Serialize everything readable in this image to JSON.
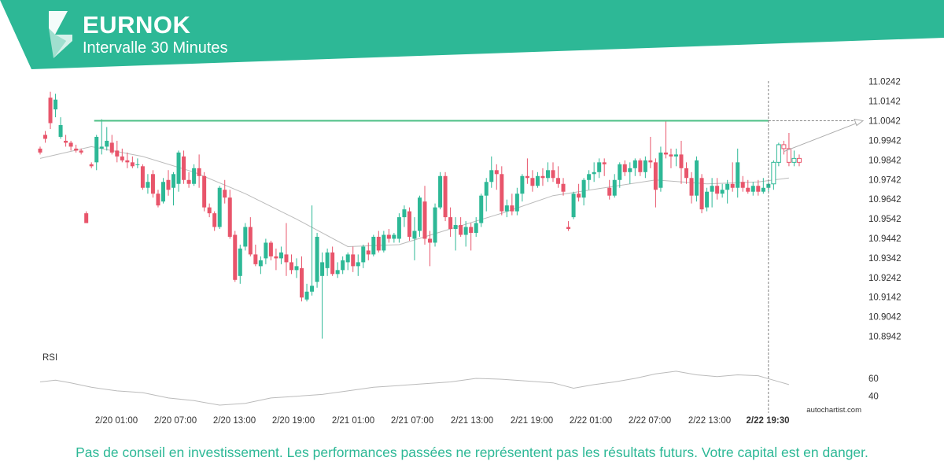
{
  "header": {
    "symbol": "EURNOK",
    "interval": "Intervalle 30 Minutes"
  },
  "colors": {
    "banner": "#2db896",
    "bull": "#2db896",
    "bear": "#e8556b",
    "resistance": "#4cbf86",
    "moving_average": "#bbbbbb",
    "rsi": "#bbbbbb"
  },
  "icons": {
    "logo": "autochartist-logo-icon"
  },
  "chart_data": {
    "type": "candlestick",
    "price_axis_labels": [
      "11.0242",
      "11.0142",
      "11.0042",
      "10.9942",
      "10.9842",
      "10.9742",
      "10.9642",
      "10.9542",
      "10.9442",
      "10.9342",
      "10.9242",
      "10.9142",
      "10.9042",
      "10.8942"
    ],
    "ylim": [
      10.8892,
      11.0277
    ],
    "time_axis_labels": [
      "2/20 01:00",
      "2/20 07:00",
      "2/20 13:00",
      "2/20 19:00",
      "2/21 01:00",
      "2/21 07:00",
      "2/21 13:00",
      "2/21 19:00",
      "2/22 01:00",
      "2/22 07:00",
      "2/22 13:00",
      "2/22 19:30"
    ],
    "bar_interval_minutes": 30,
    "resistance_level": 11.0042,
    "marker_time": "2/22 19:30",
    "projection": {
      "from": 10.9885,
      "to": 11.0042
    },
    "candles": [
      [
        10.99,
        10.991,
        10.987,
        10.988
      ],
      [
        10.997,
        10.999,
        10.993,
        10.995
      ],
      [
        11.016,
        11.019,
        11.0,
        11.003
      ],
      [
        11.01,
        11.018,
        11.006,
        11.015
      ],
      [
        10.996,
        11.006,
        10.995,
        11.002
      ],
      [
        10.994,
        10.997,
        10.991,
        10.993
      ],
      [
        10.993,
        10.994,
        10.989,
        10.991
      ],
      [
        10.99,
        10.992,
        10.988,
        10.989
      ],
      [
        10.989,
        10.99,
        10.987,
        10.988
      ],
      [
        10.957,
        10.958,
        10.952,
        10.952
      ],
      [
        10.982,
        10.983,
        10.98,
        10.981
      ],
      [
        10.983,
        10.997,
        10.979,
        10.996
      ],
      [
        10.99,
        11.005,
        10.987,
        10.991
      ],
      [
        10.991,
        11.001,
        10.989,
        10.994
      ],
      [
        10.993,
        10.997,
        10.987,
        10.988
      ],
      [
        10.989,
        10.994,
        10.983,
        10.986
      ],
      [
        10.986,
        10.99,
        10.983,
        10.984
      ],
      [
        10.984,
        10.988,
        10.98,
        10.983
      ],
      [
        10.983,
        10.986,
        10.98,
        10.981
      ],
      [
        10.982,
        10.985,
        10.98,
        10.982
      ],
      [
        10.981,
        10.982,
        10.969,
        10.97
      ],
      [
        10.97,
        10.977,
        10.967,
        10.973
      ],
      [
        10.977,
        10.979,
        10.965,
        10.967
      ],
      [
        10.967,
        10.969,
        10.96,
        10.961
      ],
      [
        10.963,
        10.975,
        10.962,
        10.973
      ],
      [
        10.974,
        10.979,
        10.966,
        10.969
      ],
      [
        10.97,
        10.978,
        10.961,
        10.977
      ],
      [
        10.972,
        10.989,
        10.968,
        10.988
      ],
      [
        10.986,
        10.989,
        10.972,
        10.974
      ],
      [
        10.974,
        10.978,
        10.97,
        10.972
      ],
      [
        10.972,
        10.982,
        10.971,
        10.98
      ],
      [
        10.98,
        10.987,
        10.97,
        10.976
      ],
      [
        10.976,
        10.978,
        10.958,
        10.96
      ],
      [
        10.96,
        10.962,
        10.955,
        10.957
      ],
      [
        10.957,
        10.958,
        10.948,
        10.95
      ],
      [
        10.95,
        10.971,
        10.949,
        10.97
      ],
      [
        10.969,
        10.974,
        10.962,
        10.965
      ],
      [
        10.965,
        10.969,
        10.944,
        10.945
      ],
      [
        10.946,
        10.948,
        10.922,
        10.923
      ],
      [
        10.925,
        10.941,
        10.921,
        10.939
      ],
      [
        10.94,
        10.952,
        10.938,
        10.95
      ],
      [
        10.95,
        10.955,
        10.935,
        10.936
      ],
      [
        10.936,
        10.941,
        10.93,
        10.931
      ],
      [
        10.93,
        10.935,
        10.926,
        10.933
      ],
      [
        10.934,
        10.944,
        10.931,
        10.942
      ],
      [
        10.942,
        10.943,
        10.933,
        10.935
      ],
      [
        10.935,
        10.939,
        10.928,
        10.934
      ],
      [
        10.934,
        10.94,
        10.931,
        10.937
      ],
      [
        10.936,
        10.952,
        10.925,
        10.932
      ],
      [
        10.932,
        10.936,
        10.926,
        10.928
      ],
      [
        10.928,
        10.934,
        10.924,
        10.93
      ],
      [
        10.929,
        10.935,
        10.912,
        10.914
      ],
      [
        10.913,
        10.921,
        10.912,
        10.917
      ],
      [
        10.917,
        10.961,
        10.915,
        10.92
      ],
      [
        10.922,
        10.947,
        10.919,
        10.945
      ],
      [
        10.925,
        10.937,
        10.893,
        10.932
      ],
      [
        10.929,
        10.939,
        10.925,
        10.937
      ],
      [
        10.937,
        10.94,
        10.925,
        10.926
      ],
      [
        10.926,
        10.932,
        10.924,
        10.928
      ],
      [
        10.928,
        10.935,
        10.926,
        10.933
      ],
      [
        10.932,
        10.937,
        10.928,
        10.936
      ],
      [
        10.936,
        10.94,
        10.927,
        10.93
      ],
      [
        10.93,
        10.936,
        10.925,
        10.932
      ],
      [
        10.932,
        10.941,
        10.929,
        10.94
      ],
      [
        10.938,
        10.942,
        10.933,
        10.936
      ],
      [
        10.936,
        10.946,
        10.935,
        10.945
      ],
      [
        10.945,
        10.948,
        10.937,
        10.938
      ],
      [
        10.938,
        10.948,
        10.937,
        10.946
      ],
      [
        10.946,
        10.949,
        10.942,
        10.944
      ],
      [
        10.944,
        10.947,
        10.942,
        10.946
      ],
      [
        10.944,
        10.957,
        10.942,
        10.955
      ],
      [
        10.955,
        10.961,
        10.95,
        10.959
      ],
      [
        10.958,
        10.96,
        10.943,
        10.945
      ],
      [
        10.944,
        10.955,
        10.933,
        10.948
      ],
      [
        10.948,
        10.966,
        10.945,
        10.965
      ],
      [
        10.963,
        10.971,
        10.941,
        10.944
      ],
      [
        10.944,
        10.948,
        10.93,
        10.942
      ],
      [
        10.942,
        10.962,
        10.94,
        10.96
      ],
      [
        10.96,
        10.978,
        10.959,
        10.976
      ],
      [
        10.976,
        10.978,
        10.953,
        10.955
      ],
      [
        10.955,
        10.96,
        10.945,
        10.949
      ],
      [
        10.949,
        10.955,
        10.938,
        10.951
      ],
      [
        10.951,
        10.955,
        10.945,
        10.946
      ],
      [
        10.946,
        10.953,
        10.94,
        10.95
      ],
      [
        10.95,
        10.952,
        10.938,
        10.947
      ],
      [
        10.947,
        10.955,
        10.945,
        10.952
      ],
      [
        10.952,
        10.967,
        10.95,
        10.966
      ],
      [
        10.966,
        10.975,
        10.958,
        10.973
      ],
      [
        10.973,
        10.986,
        10.97,
        10.979
      ],
      [
        10.979,
        10.982,
        10.969,
        10.977
      ],
      [
        10.977,
        10.981,
        10.956,
        10.958
      ],
      [
        10.958,
        10.964,
        10.955,
        10.961
      ],
      [
        10.961,
        10.967,
        10.956,
        10.958
      ],
      [
        10.958,
        10.97,
        10.956,
        10.967
      ],
      [
        10.967,
        10.977,
        10.963,
        10.976
      ],
      [
        10.976,
        10.985,
        10.972,
        10.975
      ],
      [
        10.975,
        10.979,
        10.968,
        10.971
      ],
      [
        10.971,
        10.978,
        10.97,
        10.976
      ],
      [
        10.976,
        10.98,
        10.971,
        10.975
      ],
      [
        10.975,
        10.983,
        10.973,
        10.979
      ],
      [
        10.979,
        10.983,
        10.973,
        10.975
      ],
      [
        10.975,
        10.981,
        10.97,
        10.972
      ],
      [
        10.972,
        10.975,
        10.966,
        10.968
      ],
      [
        10.95,
        10.953,
        10.948,
        10.949
      ],
      [
        10.955,
        10.968,
        10.954,
        10.967
      ],
      [
        10.967,
        10.972,
        10.963,
        10.965
      ],
      [
        10.965,
        10.975,
        10.961,
        10.974
      ],
      [
        10.974,
        10.979,
        10.969,
        10.977
      ],
      [
        10.977,
        10.983,
        10.973,
        10.978
      ],
      [
        10.978,
        10.985,
        10.975,
        10.983
      ],
      [
        10.983,
        10.985,
        10.976,
        10.982
      ],
      [
        10.97,
        10.974,
        10.964,
        10.966
      ],
      [
        10.966,
        10.977,
        10.965,
        10.974
      ],
      [
        10.974,
        10.983,
        10.97,
        10.982
      ],
      [
        10.982,
        10.984,
        10.976,
        10.978
      ],
      [
        10.978,
        10.983,
        10.972,
        10.98
      ],
      [
        10.98,
        10.985,
        10.976,
        10.984
      ],
      [
        10.984,
        10.985,
        10.976,
        10.978
      ],
      [
        10.978,
        10.986,
        10.975,
        10.984
      ],
      [
        10.984,
        10.996,
        10.98,
        10.983
      ],
      [
        10.983,
        10.985,
        10.96,
        10.969
      ],
      [
        10.97,
        10.991,
        10.968,
        10.988
      ],
      [
        10.988,
        11.004,
        10.985,
        10.987
      ],
      [
        10.987,
        10.99,
        10.98,
        10.986
      ],
      [
        10.986,
        10.99,
        10.981,
        10.987
      ],
      [
        10.987,
        10.994,
        10.972,
        10.98
      ],
      [
        10.98,
        10.983,
        10.972,
        10.975
      ],
      [
        10.975,
        10.978,
        10.962,
        10.966
      ],
      [
        10.966,
        10.986,
        10.963,
        10.984
      ],
      [
        10.975,
        10.977,
        10.957,
        10.959
      ],
      [
        10.96,
        10.97,
        10.958,
        10.968
      ],
      [
        10.968,
        10.975,
        10.96,
        10.971
      ],
      [
        10.971,
        10.975,
        10.964,
        10.967
      ],
      [
        10.967,
        10.972,
        10.965,
        10.969
      ],
      [
        10.969,
        10.974,
        10.962,
        10.972
      ],
      [
        10.972,
        10.983,
        10.968,
        10.97
      ],
      [
        10.97,
        10.99,
        10.965,
        10.983
      ],
      [
        10.973,
        10.976,
        10.968,
        10.97
      ],
      [
        10.97,
        10.974,
        10.967,
        10.968
      ],
      [
        10.968,
        10.973,
        10.966,
        10.971
      ],
      [
        10.971,
        10.974,
        10.966,
        10.968
      ],
      [
        10.968,
        10.975,
        10.967,
        10.97
      ],
      [
        10.97,
        10.973,
        10.968,
        10.972
      ],
      [
        10.972,
        10.984,
        10.969,
        10.983
      ],
      [
        10.983,
        10.993,
        10.981,
        10.992
      ],
      [
        10.992,
        10.994,
        10.987,
        10.99
      ],
      [
        10.99,
        10.998,
        10.981,
        10.983
      ],
      [
        10.983,
        10.989,
        10.981,
        10.985
      ],
      [
        10.985,
        10.987,
        10.981,
        10.983
      ]
    ],
    "moving_average": [
      [
        0,
        10.985
      ],
      [
        10,
        10.991
      ],
      [
        20,
        10.986
      ],
      [
        30,
        10.978
      ],
      [
        40,
        10.967
      ],
      [
        50,
        10.954
      ],
      [
        60,
        10.94
      ],
      [
        70,
        10.941
      ],
      [
        80,
        10.949
      ],
      [
        90,
        10.957
      ],
      [
        100,
        10.966
      ],
      [
        110,
        10.97
      ],
      [
        120,
        10.974
      ],
      [
        130,
        10.972
      ],
      [
        140,
        10.973
      ],
      [
        146,
        10.975
      ]
    ],
    "rsi": {
      "label": "RSI",
      "ticks": [
        "60",
        "40"
      ],
      "ylim": [
        30,
        75
      ],
      "values": [
        [
          0,
          56
        ],
        [
          3,
          58
        ],
        [
          6,
          55
        ],
        [
          10,
          50
        ],
        [
          15,
          46
        ],
        [
          20,
          44
        ],
        [
          25,
          38
        ],
        [
          30,
          35
        ],
        [
          35,
          30
        ],
        [
          40,
          32
        ],
        [
          45,
          38
        ],
        [
          50,
          40
        ],
        [
          55,
          42
        ],
        [
          60,
          46
        ],
        [
          65,
          50
        ],
        [
          70,
          52
        ],
        [
          75,
          54
        ],
        [
          80,
          56
        ],
        [
          85,
          60
        ],
        [
          90,
          59
        ],
        [
          95,
          57
        ],
        [
          100,
          55
        ],
        [
          104,
          49
        ],
        [
          108,
          53
        ],
        [
          112,
          56
        ],
        [
          116,
          60
        ],
        [
          120,
          65
        ],
        [
          124,
          68
        ],
        [
          128,
          64
        ],
        [
          132,
          62
        ],
        [
          136,
          64
        ],
        [
          140,
          63
        ],
        [
          143,
          58
        ],
        [
          146,
          53
        ]
      ]
    }
  },
  "branding": {
    "source": "autochartist.com"
  },
  "disclaimer": "Pas de conseil en investissement. Les performances passées ne représentent pas les résultats futurs. Votre capital est en danger."
}
